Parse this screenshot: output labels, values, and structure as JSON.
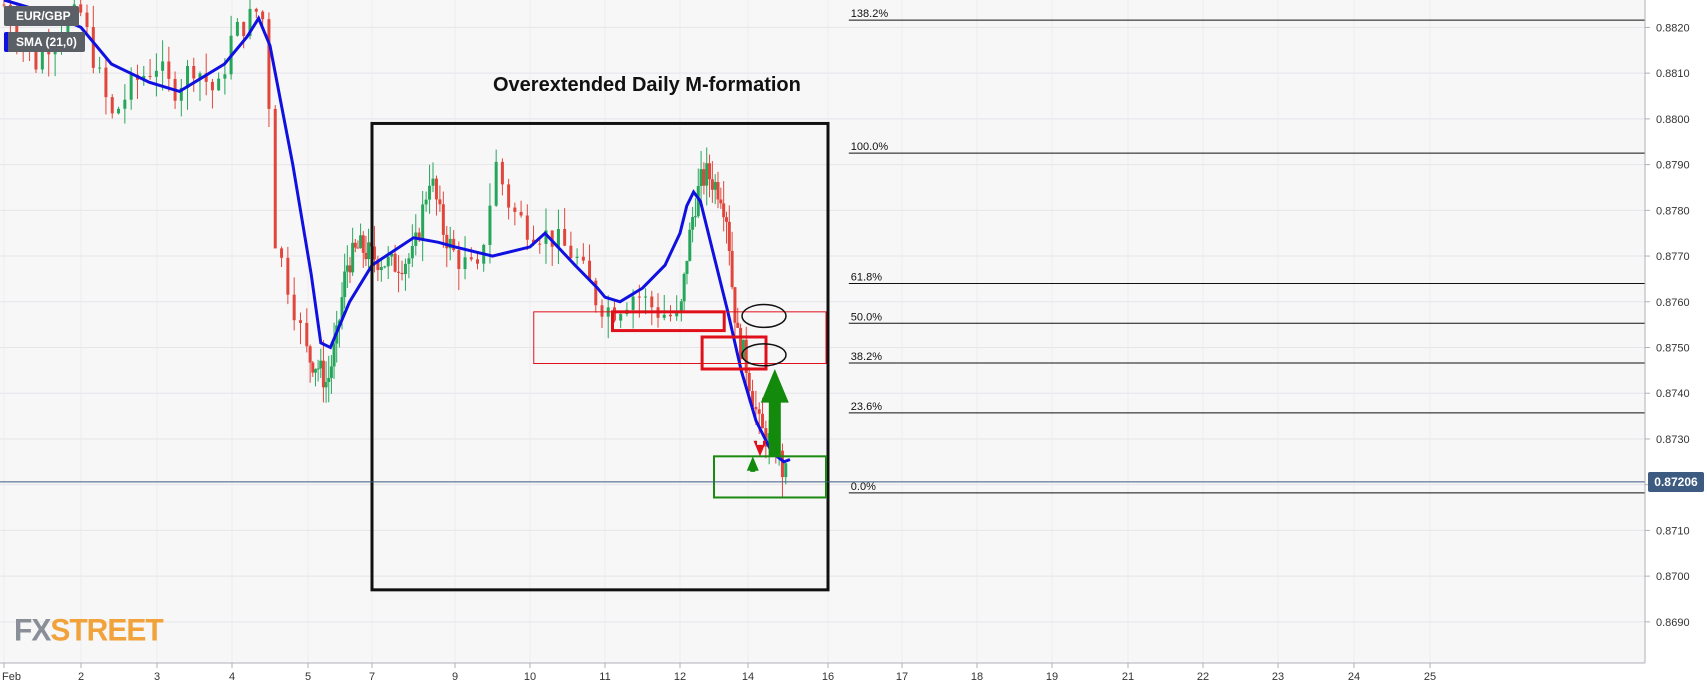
{
  "legend": {
    "symbol": "EUR/GBP",
    "indicator": "SMA (21,0)"
  },
  "current_price": "0.87206",
  "logo": {
    "fx": "FX",
    "street": "STREET"
  },
  "colors": {
    "up": "#26a65b",
    "down": "#e0463b",
    "sma": "#1010e0",
    "annotation_red": "#e0101a",
    "annotation_green": "#1a8a10",
    "arrow_green": "#138a0c",
    "arrow_red": "#e0101a",
    "price_tag": "#3d5a80"
  },
  "chart_data": {
    "type": "candlestick",
    "title": "Overextended Daily M-formation",
    "y_axis": {
      "range": [
        0.8681,
        0.8826
      ],
      "ticks": [
        "0.8690",
        "0.8700",
        "0.8710",
        "0.8720",
        "0.8730",
        "0.8740",
        "0.8750",
        "0.8760",
        "0.8770",
        "0.8780",
        "0.8790",
        "0.8800",
        "0.8810",
        "0.8820"
      ]
    },
    "x_axis": {
      "ticks": [
        "Feb",
        "2",
        "3",
        "4",
        "5",
        "7",
        "9",
        "10",
        "11",
        "12",
        "14",
        "16",
        "17",
        "18",
        "19",
        "21",
        "22",
        "23",
        "24",
        "25"
      ],
      "tick_days": [
        1,
        2,
        3,
        4,
        5,
        7,
        9,
        10,
        11,
        12,
        14,
        16,
        17,
        18,
        19,
        21,
        22,
        23,
        24,
        25
      ]
    },
    "grid": true,
    "fibonacci": [
      {
        "label": "138.2%",
        "price": 0.88216,
        "x_start_day": 16.2
      },
      {
        "label": "100.0%",
        "price": 0.87925,
        "x_start_day": 16.2
      },
      {
        "label": "61.8%",
        "price": 0.8764,
        "x_start_day": 16.2
      },
      {
        "label": "50.0%",
        "price": 0.87553,
        "x_start_day": 16.2
      },
      {
        "label": "38.2%",
        "price": 0.87466,
        "x_start_day": 16.2
      },
      {
        "label": "23.6%",
        "price": 0.87357,
        "x_start_day": 16.2
      },
      {
        "label": "0.0%",
        "price": 0.87182,
        "x_start_day": 16.2
      }
    ],
    "current_price": 0.87206,
    "sma_label": "SMA (21,0)",
    "sma": [
      [
        1.0,
        0.8826
      ],
      [
        1.6,
        0.8823
      ],
      [
        2.0,
        0.882
      ],
      [
        2.4,
        0.8812
      ],
      [
        2.9,
        0.8808
      ],
      [
        3.3,
        0.8806
      ],
      [
        3.6,
        0.8809
      ],
      [
        3.9,
        0.8812
      ],
      [
        4.2,
        0.8818
      ],
      [
        4.35,
        0.8822
      ],
      [
        4.5,
        0.8816
      ],
      [
        4.8,
        0.879
      ],
      [
        5.1,
        0.8766
      ],
      [
        5.4,
        0.8751
      ],
      [
        5.7,
        0.875
      ],
      [
        6.0,
        0.8755
      ],
      [
        6.3,
        0.876
      ],
      [
        7.0,
        0.8768
      ],
      [
        8.0,
        0.8774
      ],
      [
        8.6,
        0.8773
      ],
      [
        9.0,
        0.8772
      ],
      [
        9.5,
        0.877
      ],
      [
        10.0,
        0.8772
      ],
      [
        10.2,
        0.8775
      ],
      [
        10.6,
        0.8768
      ],
      [
        10.9,
        0.8763
      ],
      [
        11.0,
        0.8761
      ],
      [
        11.2,
        0.876
      ],
      [
        11.5,
        0.8763
      ],
      [
        11.8,
        0.8768
      ],
      [
        12.0,
        0.8775
      ],
      [
        12.2,
        0.8781
      ],
      [
        12.4,
        0.8784
      ],
      [
        12.6,
        0.8782
      ],
      [
        13.0,
        0.877
      ],
      [
        13.4,
        0.8758
      ],
      [
        13.8,
        0.8745
      ],
      [
        14.2,
        0.8734
      ],
      [
        14.6,
        0.8727
      ],
      [
        14.9,
        0.8725
      ],
      [
        15.05,
        0.87255
      ]
    ],
    "annotations": {
      "box_black": {
        "x": [
          7.0,
          16.0
        ],
        "y": [
          0.8697,
          0.8799
        ]
      },
      "zone_thin_red": {
        "x": [
          10.05,
          15.95
        ],
        "y": [
          0.87465,
          0.87578
        ]
      },
      "zone_red_a": {
        "x": [
          11.1,
          13.3
        ],
        "y": [
          0.87537,
          0.87578
        ]
      },
      "zone_red_b": {
        "x": [
          12.65,
          14.45
        ],
        "y": [
          0.87453,
          0.87523
        ]
      },
      "zone_green": {
        "x": [
          13.0,
          15.95
        ],
        "y": [
          0.87172,
          0.87262
        ]
      },
      "ellipse_50": {
        "cx": 14.4,
        "cy": 0.87569,
        "rx": 0.55,
        "ry": 0.00025
      },
      "ellipse_382": {
        "cx": 14.4,
        "cy": 0.87484,
        "rx": 0.55,
        "ry": 0.00024
      },
      "arrow_green_big": {
        "x": 14.67,
        "y_from": 0.87262,
        "y_to": 0.87453
      },
      "arrow_green_small": {
        "x": 14.12,
        "y_from": 0.87228,
        "y_to": 0.87262
      },
      "arrow_red_small": {
        "x": 14.3,
        "y_from": 0.87287,
        "y_to": 0.87262
      }
    }
  }
}
